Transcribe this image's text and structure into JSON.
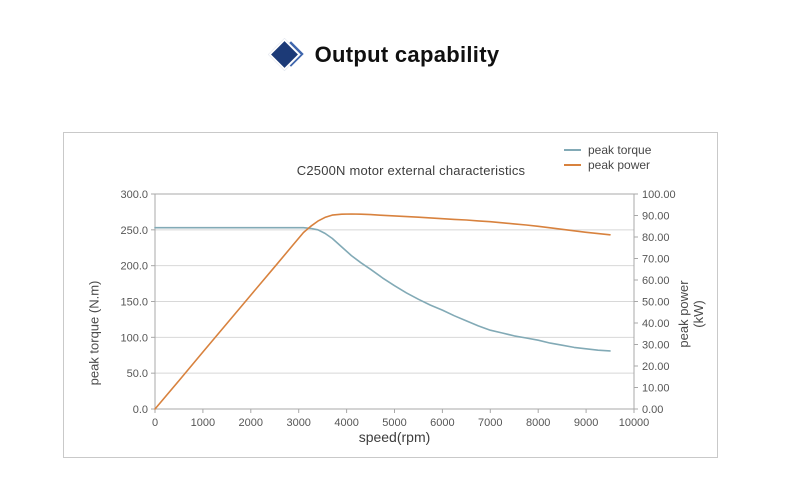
{
  "page": {
    "heading": "Output capability",
    "heading_icon": "double-diamond",
    "icon_front_color": "#1c3a77",
    "icon_back_color": "#3f66ad"
  },
  "chart_data": {
    "type": "line",
    "title": "C2500N motor  external characteristics",
    "xlabel": "speed(rpm)",
    "ylabel_left": "peak torque (N.m)",
    "ylabel_right_line1": "peak power",
    "ylabel_right_line2": "(kW)",
    "xlim": [
      0,
      10000
    ],
    "ylim_left": [
      0,
      300
    ],
    "ylim_right": [
      0,
      100
    ],
    "x_ticks": [
      "0",
      "1000",
      "2000",
      "3000",
      "4000",
      "5000",
      "6000",
      "7000",
      "8000",
      "9000",
      "10000"
    ],
    "y_left_ticks": [
      "0.0",
      "50.0",
      "100.0",
      "150.0",
      "200.0",
      "250.0",
      "300.0"
    ],
    "y_right_ticks": [
      "0.00",
      "10.00",
      "20.00",
      "30.00",
      "40.00",
      "50.00",
      "60.00",
      "70.00",
      "80.00",
      "90.00",
      "100.00"
    ],
    "grid": "horizontal-left-axis-only",
    "legend_position": "top-right",
    "x": [
      0,
      500,
      1000,
      1500,
      2000,
      2500,
      2900,
      3100,
      3250,
      3400,
      3550,
      3700,
      3900,
      4100,
      4300,
      4500,
      4750,
      5000,
      5250,
      5500,
      5750,
      6000,
      6250,
      6500,
      6750,
      7000,
      7250,
      7500,
      7750,
      8000,
      8250,
      8500,
      8750,
      9000,
      9250,
      9500
    ],
    "series": [
      {
        "name": "peak torque",
        "axis": "left",
        "unit": "N.m",
        "color": "#82aab6",
        "values": [
          253,
          253,
          253,
          253,
          253,
          253,
          253,
          253,
          252,
          250,
          245,
          238,
          226,
          214,
          204,
          195,
          183,
          172,
          162,
          153,
          145,
          138,
          130,
          123,
          116,
          110,
          106,
          102,
          99,
          96,
          92,
          89,
          86,
          84,
          82,
          81
        ]
      },
      {
        "name": "peak power",
        "axis": "right",
        "unit": "kW",
        "color": "#d8823e",
        "values": [
          0,
          13.2,
          26.5,
          39.7,
          53.0,
          66.2,
          76.8,
          82.1,
          85.0,
          87.4,
          89.1,
          90.2,
          90.6,
          90.7,
          90.6,
          90.4,
          90.1,
          89.8,
          89.5,
          89.2,
          88.9,
          88.5,
          88.2,
          87.9,
          87.5,
          87.1,
          86.6,
          86.1,
          85.6,
          85.0,
          84.3,
          83.6,
          82.9,
          82.2,
          81.6,
          81.0
        ]
      }
    ]
  }
}
